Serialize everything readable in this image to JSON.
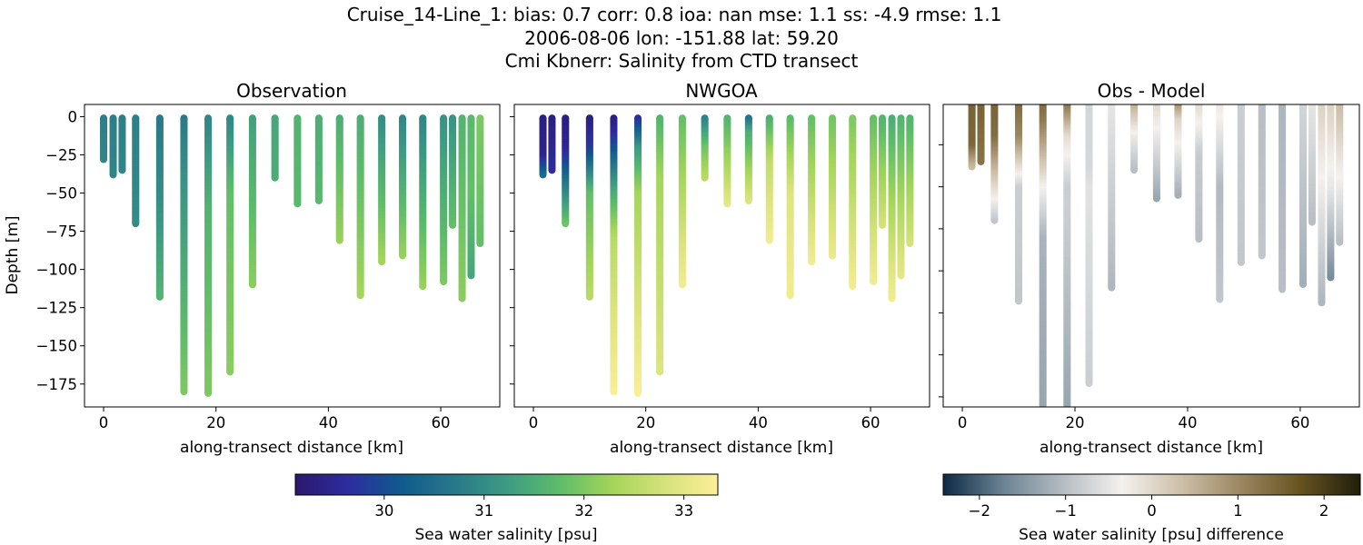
{
  "title_lines": [
    "Cruise_14-Line_1: bias: 0.7  corr: 0.8  ioa: nan  mse: 1.1  ss: -4.9  rmse: 1.1",
    "2006-08-06 lon: -151.88 lat: 59.20",
    "Cmi Kbnerr: Salinity from CTD transect"
  ],
  "chart_data": [
    {
      "type": "scatter",
      "title": "Observation",
      "xlabel": "along-transect distance [km]",
      "ylabel": "Depth [m]",
      "xlim": [
        -3.4,
        70.5
      ],
      "ylim": [
        -190,
        8
      ],
      "xticks": [
        "0",
        "20",
        "40",
        "60"
      ],
      "yticks": [
        "0",
        "−25",
        "−50",
        "−75",
        "−100",
        "−125",
        "−150",
        "−175"
      ],
      "variable": "obs",
      "colormap": "salinity"
    },
    {
      "type": "scatter",
      "title": "NWGOA",
      "xlabel": "along-transect distance [km]",
      "xlim": [
        -3.4,
        70.5
      ],
      "ylim": [
        -190,
        8
      ],
      "xticks": [
        "0",
        "20",
        "40",
        "60"
      ],
      "variable": "model",
      "colormap": "salinity"
    },
    {
      "type": "scatter",
      "title": "Obs - Model",
      "xlabel": "along-transect distance [km]",
      "xlim": [
        -3.4,
        70.5
      ],
      "ylim": [
        -181,
        -1
      ],
      "xticks": [
        "0",
        "20",
        "40",
        "60"
      ],
      "variable": "obs_minus_model",
      "colormap": "difference"
    }
  ],
  "stations": [
    {
      "distance_km": 0.0,
      "max_depth_m": -28,
      "obs": [
        [
          0,
          30.8
        ],
        [
          -28,
          30.9
        ]
      ],
      "model": null
    },
    {
      "distance_km": 1.7,
      "max_depth_m": -38,
      "obs": [
        [
          0,
          30.8
        ],
        [
          -38,
          30.9
        ]
      ],
      "model": [
        [
          0,
          29.3
        ],
        [
          -25,
          29.4
        ],
        [
          -38,
          30.5
        ]
      ]
    },
    {
      "distance_km": 3.3,
      "max_depth_m": -35,
      "obs": [
        [
          0,
          30.8
        ],
        [
          -35,
          30.9
        ]
      ],
      "model": [
        [
          0,
          29.3
        ],
        [
          -35,
          29.6
        ]
      ]
    },
    {
      "distance_km": 5.7,
      "max_depth_m": -70,
      "obs": [
        [
          0,
          30.8
        ],
        [
          -70,
          31.0
        ]
      ],
      "model": [
        [
          0,
          29.3
        ],
        [
          -20,
          29.5
        ],
        [
          -40,
          30.5
        ],
        [
          -70,
          31.9
        ]
      ]
    },
    {
      "distance_km": 10.0,
      "max_depth_m": -118,
      "obs": [
        [
          0,
          30.7
        ],
        [
          -50,
          31.0
        ],
        [
          -118,
          31.6
        ]
      ],
      "model": [
        [
          0,
          29.3
        ],
        [
          -20,
          29.8
        ],
        [
          -50,
          31.8
        ],
        [
          -118,
          32.5
        ]
      ]
    },
    {
      "distance_km": 14.3,
      "max_depth_m": -180,
      "obs": [
        [
          0,
          30.7
        ],
        [
          -40,
          31.1
        ],
        [
          -180,
          32.0
        ]
      ],
      "model": [
        [
          0,
          29.3
        ],
        [
          -10,
          29.6
        ],
        [
          -50,
          31.5
        ],
        [
          -80,
          32.5
        ],
        [
          -180,
          33.3
        ]
      ]
    },
    {
      "distance_km": 18.6,
      "max_depth_m": -181,
      "obs": [
        [
          0,
          30.9
        ],
        [
          -60,
          31.6
        ],
        [
          -181,
          32.0
        ]
      ],
      "model": [
        [
          0,
          29.6
        ],
        [
          -20,
          31.2
        ],
        [
          -50,
          32.3
        ],
        [
          -181,
          33.3
        ]
      ]
    },
    {
      "distance_km": 22.5,
      "max_depth_m": -167,
      "obs": [
        [
          0,
          30.9
        ],
        [
          -50,
          31.8
        ],
        [
          -167,
          32.1
        ]
      ],
      "model": [
        [
          0,
          31.6
        ],
        [
          -40,
          32.3
        ],
        [
          -167,
          32.9
        ]
      ]
    },
    {
      "distance_km": 26.5,
      "max_depth_m": -110,
      "obs": [
        [
          0,
          31.3
        ],
        [
          -110,
          32.1
        ]
      ],
      "model": [
        [
          0,
          31.8
        ],
        [
          -110,
          33.2
        ]
      ]
    },
    {
      "distance_km": 30.5,
      "max_depth_m": -40,
      "obs": [
        [
          0,
          31.4
        ],
        [
          -40,
          31.5
        ]
      ],
      "model": [
        [
          0,
          30.8
        ],
        [
          -20,
          31.9
        ],
        [
          -40,
          32.5
        ]
      ]
    },
    {
      "distance_km": 34.5,
      "max_depth_m": -57,
      "obs": [
        [
          0,
          31.6
        ],
        [
          -57,
          31.7
        ]
      ],
      "model": [
        [
          0,
          31.6
        ],
        [
          -57,
          33.0
        ]
      ]
    },
    {
      "distance_km": 38.3,
      "max_depth_m": -55,
      "obs": [
        [
          0,
          31.5
        ],
        [
          -55,
          31.7
        ]
      ],
      "model": [
        [
          0,
          30.5
        ],
        [
          -10,
          31.5
        ],
        [
          -55,
          32.9
        ]
      ]
    },
    {
      "distance_km": 42.0,
      "max_depth_m": -81,
      "obs": [
        [
          0,
          31.5
        ],
        [
          -81,
          32.2
        ]
      ],
      "model": [
        [
          0,
          31.5
        ],
        [
          -30,
          32.6
        ],
        [
          -81,
          33.2
        ]
      ]
    },
    {
      "distance_km": 45.7,
      "max_depth_m": -117,
      "obs": [
        [
          0,
          31.5
        ],
        [
          -117,
          32.3
        ]
      ],
      "model": [
        [
          0,
          31.7
        ],
        [
          -50,
          32.9
        ],
        [
          -117,
          33.2
        ]
      ]
    },
    {
      "distance_km": 49.5,
      "max_depth_m": -95,
      "obs": [
        [
          0,
          31.0
        ],
        [
          -95,
          32.3
        ]
      ],
      "model": [
        [
          0,
          31.8
        ],
        [
          -95,
          33.2
        ]
      ]
    },
    {
      "distance_km": 53.2,
      "max_depth_m": -91,
      "obs": [
        [
          0,
          30.9
        ],
        [
          -91,
          32.2
        ]
      ],
      "model": [
        [
          0,
          31.9
        ],
        [
          -91,
          33.1
        ]
      ]
    },
    {
      "distance_km": 56.8,
      "max_depth_m": -111,
      "obs": [
        [
          0,
          30.9
        ],
        [
          -111,
          32.2
        ]
      ],
      "model": [
        [
          0,
          32.0
        ],
        [
          -111,
          33.2
        ]
      ]
    },
    {
      "distance_km": 60.5,
      "max_depth_m": -108,
      "obs": [
        [
          0,
          31.1
        ],
        [
          -108,
          32.0
        ]
      ],
      "model": [
        [
          0,
          31.8
        ],
        [
          -108,
          33.2
        ]
      ]
    },
    {
      "distance_km": 62.1,
      "max_depth_m": -71,
      "obs": [
        [
          0,
          31.1
        ],
        [
          -71,
          31.8
        ]
      ],
      "model": [
        [
          0,
          31.6
        ],
        [
          -71,
          32.8
        ]
      ]
    },
    {
      "distance_km": 63.8,
      "max_depth_m": -119,
      "obs": [
        [
          0,
          31.6
        ],
        [
          -119,
          32.1
        ]
      ],
      "model": [
        [
          0,
          31.5
        ],
        [
          -119,
          33.2
        ]
      ]
    },
    {
      "distance_km": 65.4,
      "max_depth_m": -104,
      "obs": [
        [
          0,
          31.7
        ],
        [
          -50,
          31.8
        ],
        [
          -104,
          31.4
        ]
      ],
      "model": [
        [
          0,
          31.6
        ],
        [
          -104,
          33.0
        ]
      ]
    },
    {
      "distance_km": 67.0,
      "max_depth_m": -83,
      "obs": [
        [
          0,
          32.0
        ],
        [
          -83,
          31.8
        ]
      ],
      "model": [
        [
          0,
          31.6
        ],
        [
          -83,
          32.8
        ]
      ]
    }
  ],
  "colorbars": {
    "salinity": {
      "label": "Sea water salinity [psu]",
      "range": [
        29.11,
        33.34
      ],
      "ticks": [
        "30",
        "31",
        "32",
        "33"
      ],
      "tick_values": [
        30,
        31,
        32,
        33
      ],
      "colors": [
        "#2a186c",
        "#2d2ca0",
        "#0f5a8e",
        "#28788a",
        "#3d9b83",
        "#5dbc6a",
        "#a3d55a",
        "#d6e27a",
        "#fcef99"
      ]
    },
    "difference": {
      "label": "Sea water salinity [psu] difference",
      "range": [
        -2.42,
        2.42
      ],
      "ticks": [
        "−2",
        "−1",
        "0",
        "1",
        "2"
      ],
      "tick_values": [
        -2,
        -1,
        0,
        1,
        2
      ],
      "colors": [
        "#0c2a45",
        "#6a8293",
        "#b4bcc2",
        "#f4f1ee",
        "#cdbfa8",
        "#9a8660",
        "#675220",
        "#1f1f0a"
      ]
    }
  }
}
